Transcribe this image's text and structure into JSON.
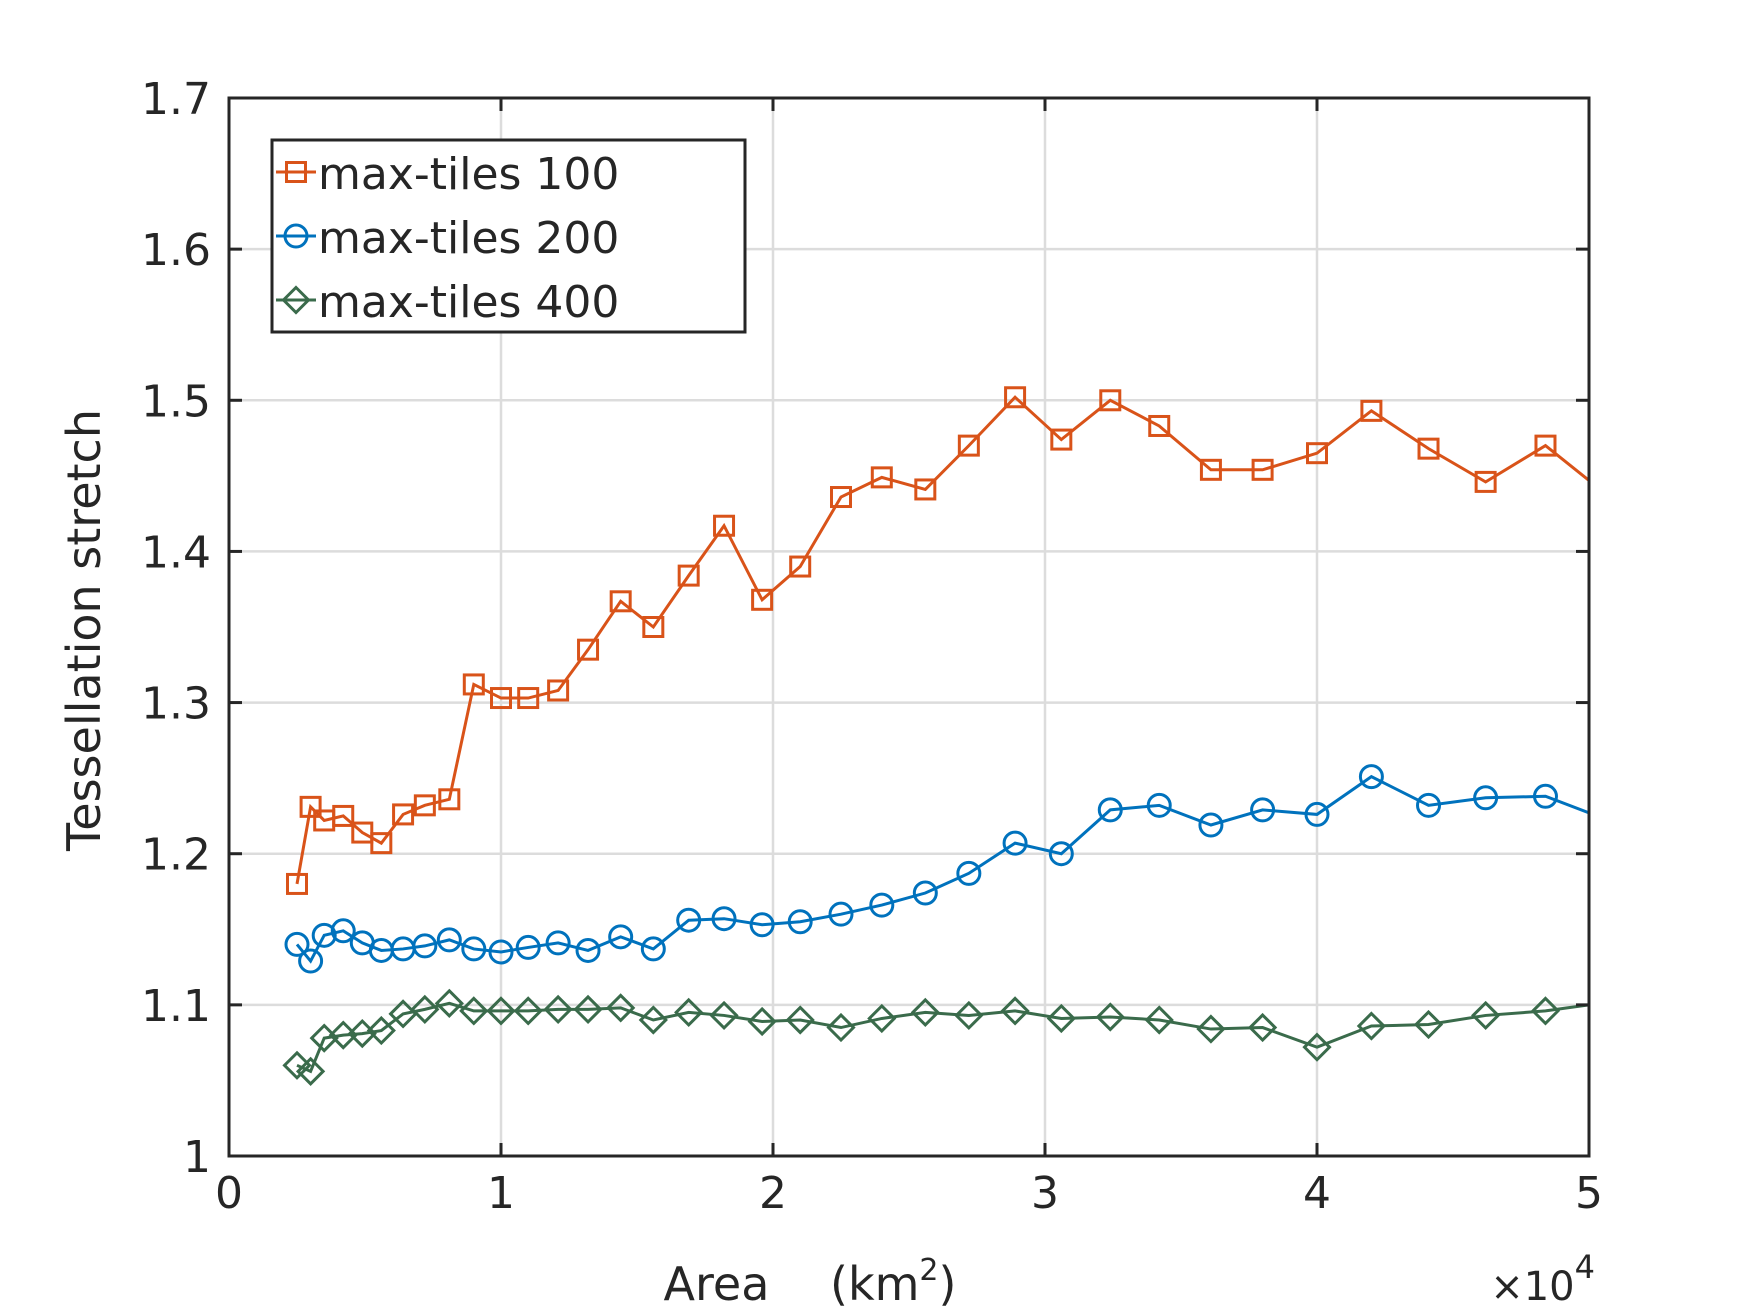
{
  "chart_data": {
    "type": "line",
    "title": "",
    "xlabel": "Area",
    "xlabel_unit_base": "(km",
    "xlabel_unit_exp": "2",
    "xlabel_unit_close": ")",
    "ylabel": "Tessellation stretch",
    "x_multiplier_prefix": "×10",
    "x_multiplier_exp": "4",
    "xlim": [
      0,
      5
    ],
    "ylim": [
      1,
      1.7
    ],
    "xticks": [
      0,
      1,
      2,
      3,
      4,
      5
    ],
    "xtick_labels": [
      "0",
      "1",
      "2",
      "3",
      "4",
      "5"
    ],
    "yticks": [
      1,
      1.1,
      1.2,
      1.3,
      1.4,
      1.5,
      1.6,
      1.7
    ],
    "ytick_labels": [
      "1",
      "1.1",
      "1.2",
      "1.3",
      "1.4",
      "1.5",
      "1.6",
      "1.7"
    ],
    "grid": true,
    "legend_position": "top-left",
    "series": [
      {
        "name": "max-tiles 100",
        "color": "#D95319",
        "marker": "square",
        "x": [
          0.25,
          0.3,
          0.35,
          0.42,
          0.49,
          0.56,
          0.64,
          0.72,
          0.81,
          0.9,
          1.0,
          1.1,
          1.21,
          1.32,
          1.44,
          1.56,
          1.69,
          1.82,
          1.96,
          2.1,
          2.25,
          2.4,
          2.56,
          2.72,
          2.89,
          3.06,
          3.24,
          3.42,
          3.61,
          3.8,
          4.0,
          4.2,
          4.41,
          4.62,
          4.84,
          5.0
        ],
        "values": [
          1.18,
          1.231,
          1.222,
          1.225,
          1.214,
          1.207,
          1.226,
          1.232,
          1.236,
          1.312,
          1.303,
          1.303,
          1.308,
          1.335,
          1.367,
          1.35,
          1.384,
          1.417,
          1.368,
          1.39,
          1.436,
          1.449,
          1.441,
          1.47,
          1.502,
          1.474,
          1.5,
          1.483,
          1.454,
          1.454,
          1.465,
          1.493,
          1.468,
          1.446,
          1.47,
          1.447
        ]
      },
      {
        "name": "max-tiles 200",
        "color": "#0072BD",
        "marker": "circle",
        "x": [
          0.25,
          0.3,
          0.35,
          0.42,
          0.49,
          0.56,
          0.64,
          0.72,
          0.81,
          0.9,
          1.0,
          1.1,
          1.21,
          1.32,
          1.44,
          1.56,
          1.69,
          1.82,
          1.96,
          2.1,
          2.25,
          2.4,
          2.56,
          2.72,
          2.89,
          3.06,
          3.24,
          3.42,
          3.61,
          3.8,
          4.0,
          4.2,
          4.41,
          4.62,
          4.84,
          5.0
        ],
        "values": [
          1.14,
          1.129,
          1.146,
          1.149,
          1.141,
          1.136,
          1.137,
          1.139,
          1.143,
          1.137,
          1.135,
          1.138,
          1.141,
          1.136,
          1.145,
          1.137,
          1.156,
          1.157,
          1.153,
          1.155,
          1.16,
          1.166,
          1.174,
          1.187,
          1.207,
          1.2,
          1.229,
          1.232,
          1.219,
          1.229,
          1.226,
          1.251,
          1.232,
          1.237,
          1.238,
          1.227
        ]
      },
      {
        "name": "max-tiles 400",
        "color": "#3A6B4B",
        "marker": "diamond",
        "x": [
          0.25,
          0.3,
          0.35,
          0.42,
          0.49,
          0.56,
          0.64,
          0.72,
          0.81,
          0.9,
          1.0,
          1.1,
          1.21,
          1.32,
          1.44,
          1.56,
          1.69,
          1.82,
          1.96,
          2.1,
          2.25,
          2.4,
          2.56,
          2.72,
          2.89,
          3.06,
          3.24,
          3.42,
          3.61,
          3.8,
          4.0,
          4.2,
          4.41,
          4.62,
          4.84,
          5.0
        ],
        "values": [
          1.06,
          1.056,
          1.078,
          1.08,
          1.081,
          1.083,
          1.094,
          1.097,
          1.101,
          1.096,
          1.096,
          1.096,
          1.097,
          1.097,
          1.098,
          1.09,
          1.095,
          1.093,
          1.089,
          1.09,
          1.085,
          1.091,
          1.095,
          1.093,
          1.096,
          1.091,
          1.092,
          1.09,
          1.084,
          1.085,
          1.072,
          1.086,
          1.087,
          1.093,
          1.096,
          1.1
        ]
      }
    ]
  }
}
